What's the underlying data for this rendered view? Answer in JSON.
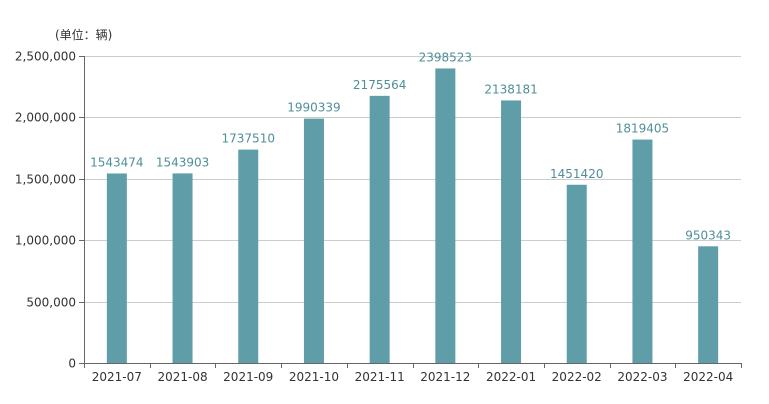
{
  "unit_label": "(单位：辆)",
  "colors": {
    "bar": "#5f9ea8",
    "data_label": "#4f8f99",
    "grid": "#cccccc",
    "axis": "#666666"
  },
  "chart_data": {
    "type": "bar",
    "title": "",
    "xlabel": "",
    "ylabel": "",
    "ylim": [
      0,
      2500000
    ],
    "y_ticks": [
      "0",
      "500,000",
      "1,000,000",
      "1,500,000",
      "2,000,000",
      "2,500,000"
    ],
    "y_tick_values": [
      0,
      500000,
      1000000,
      1500000,
      2000000,
      2500000
    ],
    "grid": true,
    "categories": [
      "2021-07",
      "2021-08",
      "2021-09",
      "2021-10",
      "2021-11",
      "2021-12",
      "2022-01",
      "2022-02",
      "2022-03",
      "2022-04"
    ],
    "values": [
      1543474,
      1543903,
      1737510,
      1990339,
      2175564,
      2398523,
      2138181,
      1451420,
      1819405,
      950343
    ]
  }
}
